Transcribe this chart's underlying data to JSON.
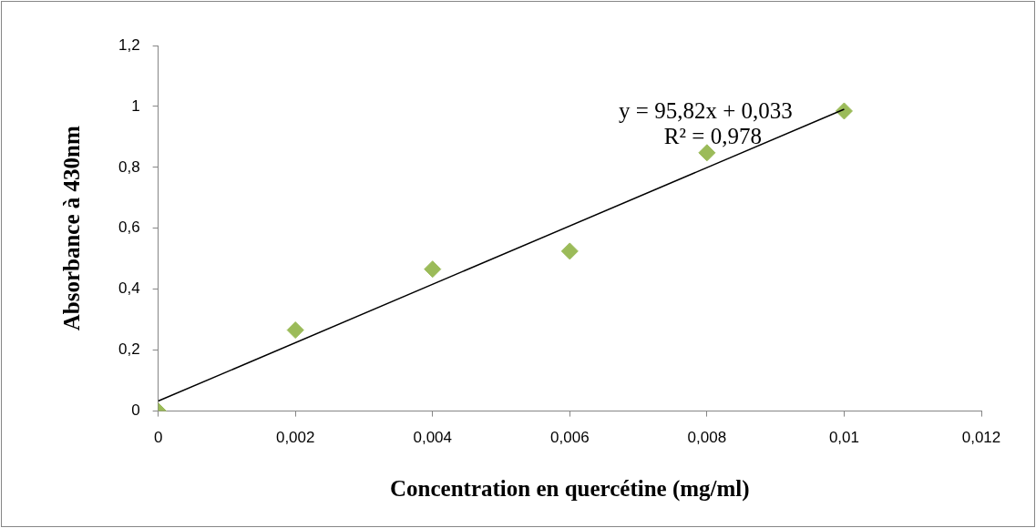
{
  "chart_data": {
    "type": "scatter",
    "xlabel": "Concentration en quercétine (mg/ml)",
    "ylabel": "Absorbance à 430nm",
    "x": [
      0,
      0.002,
      0.004,
      0.006,
      0.008,
      0.01
    ],
    "series": [
      {
        "type": "scatter",
        "color": "#9bbb59",
        "values": [
          0,
          0.266,
          0.466,
          0.525,
          0.848,
          0.985
        ]
      },
      {
        "type": "line",
        "color": "#000000",
        "x": [
          0,
          0.01
        ],
        "values": [
          0.033,
          0.991
        ],
        "marker": "none"
      }
    ],
    "marker": "diamond",
    "grid": false,
    "legend": false,
    "xlim": [
      0,
      0.012
    ],
    "xticks": [
      0,
      {
        "value": 0.002,
        "label": "0,002"
      },
      {
        "value": 0.004,
        "label": "0,004"
      },
      {
        "value": 0.006,
        "label": "0,006"
      },
      {
        "value": 0.008,
        "label": "0,008"
      },
      {
        "value": 0.01,
        "label": "0,01"
      },
      {
        "value": 0.012,
        "label": "0,012"
      }
    ],
    "ylim": [
      0,
      1.2
    ],
    "yticks": [
      0,
      {
        "value": 0.2,
        "label": "0,2"
      },
      {
        "value": 0.4,
        "label": "0,4"
      },
      {
        "value": 0.6,
        "label": "0,6"
      },
      {
        "value": 0.8,
        "label": "0,8"
      },
      1,
      {
        "value": 1.2,
        "label": "1,2"
      }
    ],
    "annotations": [
      "y = 95,82x + 0,033",
      "R² = 0,978"
    ]
  }
}
